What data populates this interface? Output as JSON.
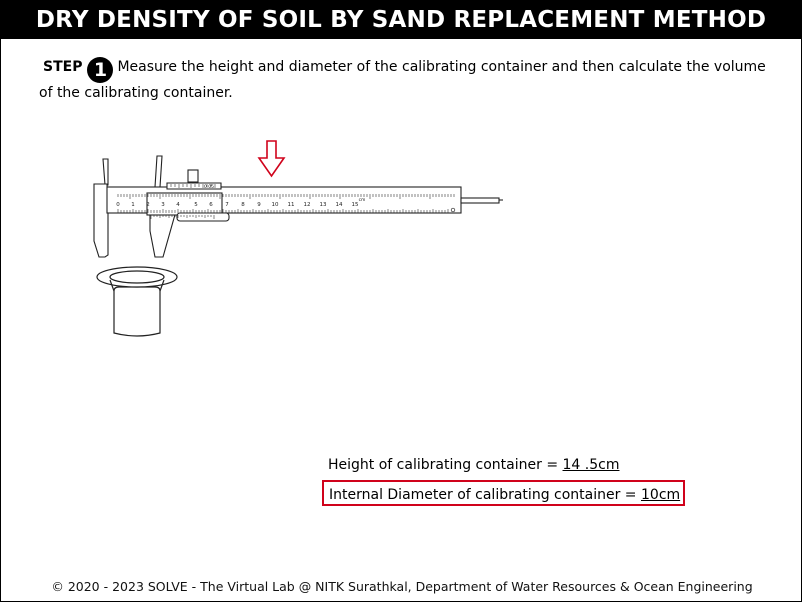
{
  "header": {
    "title": "DRY DENSITY OF SOIL BY SAND REPLACEMENT METHOD"
  },
  "step": {
    "label": "STEP",
    "number": "1",
    "instruction": "Measure the height and diameter of the calibrating container and then calculate the volume of the calibrating container."
  },
  "illustration": {
    "caliper_scale_labels": [
      "0",
      "1",
      "2",
      "3",
      "4",
      "5",
      "6",
      "7",
      "8",
      "9",
      "10",
      "11",
      "12",
      "13",
      "14",
      "15"
    ],
    "vernier_label": "0.05",
    "unit_label": "cm",
    "arrow_color": "#d0021b",
    "icons": [
      "vernier-caliper-icon",
      "calibrating-container-icon",
      "down-arrow-icon"
    ]
  },
  "results": {
    "height_label": "Height of calibrating container = ",
    "height_value": "14 .5cm",
    "diameter_label": "Internal Diameter of calibrating container = ",
    "diameter_value": "10cm",
    "highlight_color": "#d0021b"
  },
  "footer": {
    "text": "© 2020 - 2023 SOLVE - The Virtual Lab @ NITK Surathkal, Department of Water Resources & Ocean Engineering"
  }
}
